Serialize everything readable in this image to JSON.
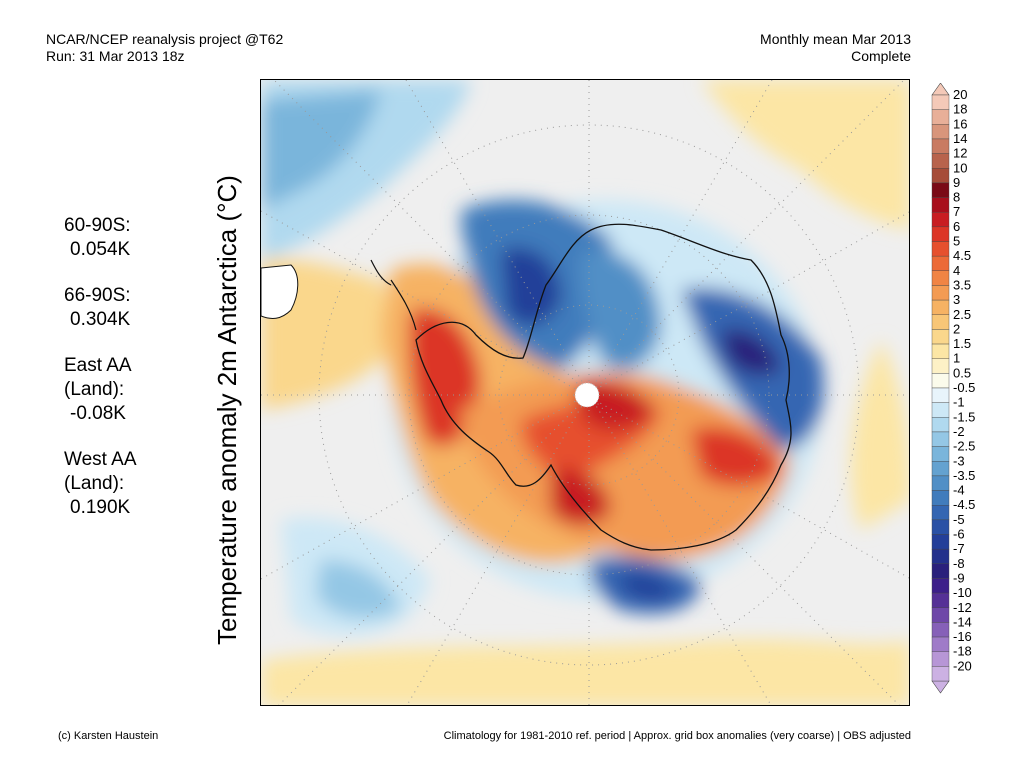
{
  "header": {
    "project": "NCAR/NCEP reanalysis project @T62",
    "run": "Run: 31 Mar 2013 18z",
    "period": "Monthly mean Mar 2013",
    "status": "Complete"
  },
  "map": {
    "ylabel": "Temperature anomaly 2m Antarctica (°C)",
    "projection": "south-polar-stereographic",
    "pole_marker": "white-dotted-circle",
    "graticule": "dotted"
  },
  "stats": [
    {
      "region": "60-90S:",
      "value": "0.054K"
    },
    {
      "region": "66-90S:",
      "value": "0.304K"
    },
    {
      "region_line1": "East AA",
      "region_line2": "(Land):",
      "value": "-0.08K"
    },
    {
      "region_line1": "West AA",
      "region_line2": "(Land):",
      "value": "0.190K"
    }
  ],
  "colorbar": {
    "labels": [
      "20",
      "18",
      "16",
      "14",
      "12",
      "10",
      "9",
      "8",
      "7",
      "6",
      "5",
      "4.5",
      "4",
      "3.5",
      "3",
      "2.5",
      "2",
      "1.5",
      "1",
      "0.5",
      "-0.5",
      "-1",
      "-1.5",
      "-2",
      "-2.5",
      "-3",
      "-3.5",
      "-4",
      "-4.5",
      "-5",
      "-6",
      "-7",
      "-8",
      "-9",
      "-10",
      "-12",
      "-14",
      "-16",
      "-18",
      "-20"
    ],
    "colors": [
      "#f4c9b8",
      "#e8af98",
      "#d8957b",
      "#c97b62",
      "#b8634c",
      "#a64c38",
      "#7a0a16",
      "#a80f1c",
      "#c81d22",
      "#dc3526",
      "#e6502e",
      "#ec6a37",
      "#f08444",
      "#f39b53",
      "#f6b263",
      "#f8c677",
      "#fad78c",
      "#fce6a5",
      "#fdf1c6",
      "#fbfbeb",
      "#e8f4fb",
      "#cde8f6",
      "#b0d9ef",
      "#94c7e5",
      "#7ab5db",
      "#64a2d0",
      "#518fc6",
      "#417cbc",
      "#3466b2",
      "#2a51a5",
      "#243f99",
      "#23308c",
      "#2a207c",
      "#3d1f8a",
      "#553096",
      "#6e47a8",
      "#8660b8",
      "#9f7bc8",
      "#b796d6",
      "#ccb1e3"
    ]
  },
  "footer": {
    "credit": "(c) Karsten Haustein",
    "note": "Climatology for 1981-2010 ref. period | Approx. grid box anomalies (very coarse) | OBS adjusted"
  }
}
